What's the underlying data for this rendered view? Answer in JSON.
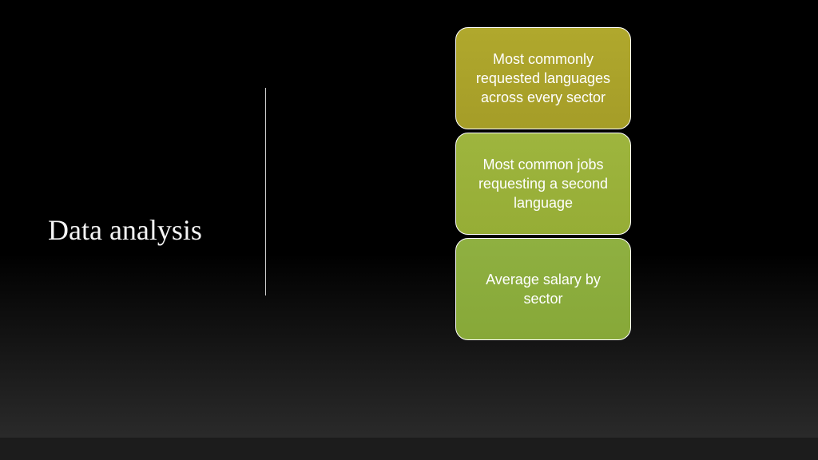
{
  "slide": {
    "title": "Data analysis",
    "background_gradient": [
      "#000000",
      "#2a2a2a"
    ],
    "title_color": "#f5f5f5",
    "title_fontsize": 36,
    "divider_color": "#d0d0d0"
  },
  "cards": [
    {
      "text": "Most commonly requested languages across every sector",
      "background_color": "#a8a02a",
      "border_color": "#ffffff",
      "text_color": "#ffffff",
      "fontsize": 18
    },
    {
      "text": "Most common jobs requesting a second language",
      "background_color": "#9ab23a",
      "border_color": "#ffffff",
      "text_color": "#ffffff",
      "fontsize": 18
    },
    {
      "text": "Average salary by sector",
      "background_color": "#8bac3c",
      "border_color": "#ffffff",
      "text_color": "#ffffff",
      "fontsize": 18
    }
  ]
}
